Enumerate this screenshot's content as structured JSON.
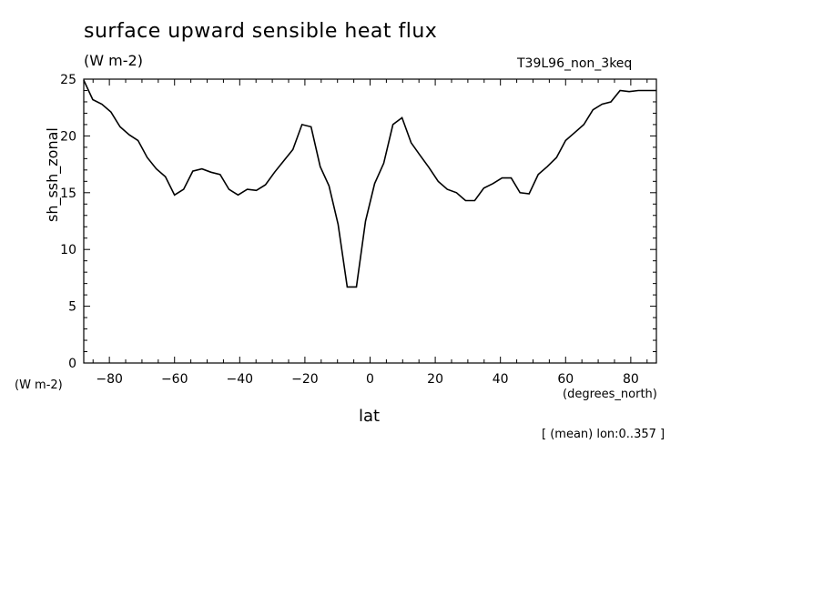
{
  "title": "surface upward sensible heat flux",
  "units": "(W m-2)",
  "experiment": "T39L96_non_3keq",
  "y_units": "(W m-2)",
  "x_units": "(degrees_north)",
  "note": "[ (mean) lon:0..357 ]",
  "chart_data": {
    "type": "line",
    "xlabel": "lat",
    "ylabel": "sh_ssh_zonal",
    "xlim": [
      -87.86,
      87.86
    ],
    "ylim": [
      0,
      25
    ],
    "xticks": [
      -80,
      -60,
      -40,
      -20,
      0,
      20,
      40,
      60,
      80
    ],
    "yticks": [
      0,
      5,
      10,
      15,
      20,
      25
    ],
    "grid": false,
    "series": [
      {
        "x": [
          -87.86,
          -85.1,
          -82.3,
          -79.5,
          -76.7,
          -73.9,
          -71.2,
          -68.4,
          -65.6,
          -62.8,
          -60.0,
          -57.2,
          -54.4,
          -51.6,
          -48.8,
          -46.0,
          -43.3,
          -40.5,
          -37.7,
          -34.9,
          -32.1,
          -29.3,
          -26.5,
          -23.7,
          -20.9,
          -18.1,
          -15.3,
          -12.6,
          -9.8,
          -7.0,
          -4.2,
          -1.4,
          1.4,
          4.2,
          7.0,
          9.8,
          12.6,
          15.3,
          18.1,
          20.9,
          23.7,
          26.5,
          29.3,
          32.1,
          34.9,
          37.7,
          40.5,
          43.3,
          46.0,
          48.8,
          51.6,
          54.4,
          57.2,
          60.0,
          62.8,
          65.6,
          68.4,
          71.2,
          73.9,
          76.7,
          79.5,
          82.3,
          85.1,
          87.86
        ],
        "values": [
          24.9,
          23.2,
          22.8,
          22.1,
          20.8,
          20.1,
          19.6,
          18.1,
          17.1,
          16.4,
          14.8,
          15.3,
          16.9,
          17.1,
          16.8,
          16.6,
          15.3,
          14.8,
          15.3,
          15.2,
          15.7,
          16.8,
          17.8,
          18.8,
          21.0,
          20.8,
          17.3,
          15.6,
          12.2,
          6.7,
          6.7,
          12.5,
          15.8,
          17.6,
          21.0,
          21.6,
          19.4,
          18.3,
          17.2,
          16.0,
          15.3,
          15.0,
          14.3,
          14.3,
          15.4,
          15.8,
          16.3,
          16.3,
          15.0,
          14.9,
          16.6,
          17.3,
          18.1,
          19.6,
          20.3,
          21.0,
          22.3,
          22.8,
          23.0,
          24.0,
          23.9,
          24.0,
          24.0,
          24.0
        ]
      }
    ]
  }
}
